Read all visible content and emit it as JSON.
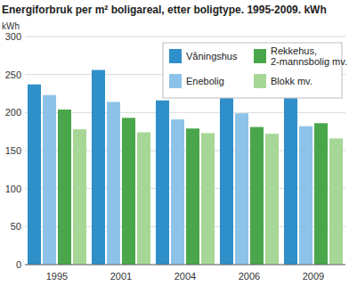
{
  "chart_data": {
    "type": "bar",
    "title": "Energiforbruk per m² boligareal, etter boligtype. 1995-2009. kWh",
    "y_label": "kWh",
    "categories": [
      "1995",
      "2001",
      "2004",
      "2006",
      "2009"
    ],
    "series": [
      {
        "name": "Våningshus",
        "color": "#2f8fc9",
        "values": [
          237,
          256,
          216,
          220,
          219
        ]
      },
      {
        "name": "Enebolig",
        "color": "#8dc3e8",
        "values": [
          223,
          214,
          191,
          199,
          182
        ]
      },
      {
        "name": "Rekkehus, 2-mannsbolig mv.",
        "color": "#4aa64a",
        "values": [
          204,
          193,
          179,
          181,
          186
        ]
      },
      {
        "name": "Blokk mv.",
        "color": "#a6d796",
        "values": [
          178,
          174,
          173,
          172,
          166
        ]
      }
    ],
    "ylim": [
      0,
      300
    ],
    "yticks": [
      0,
      50,
      100,
      150,
      200,
      250,
      300
    ],
    "grid": true,
    "legend": "top-right"
  }
}
